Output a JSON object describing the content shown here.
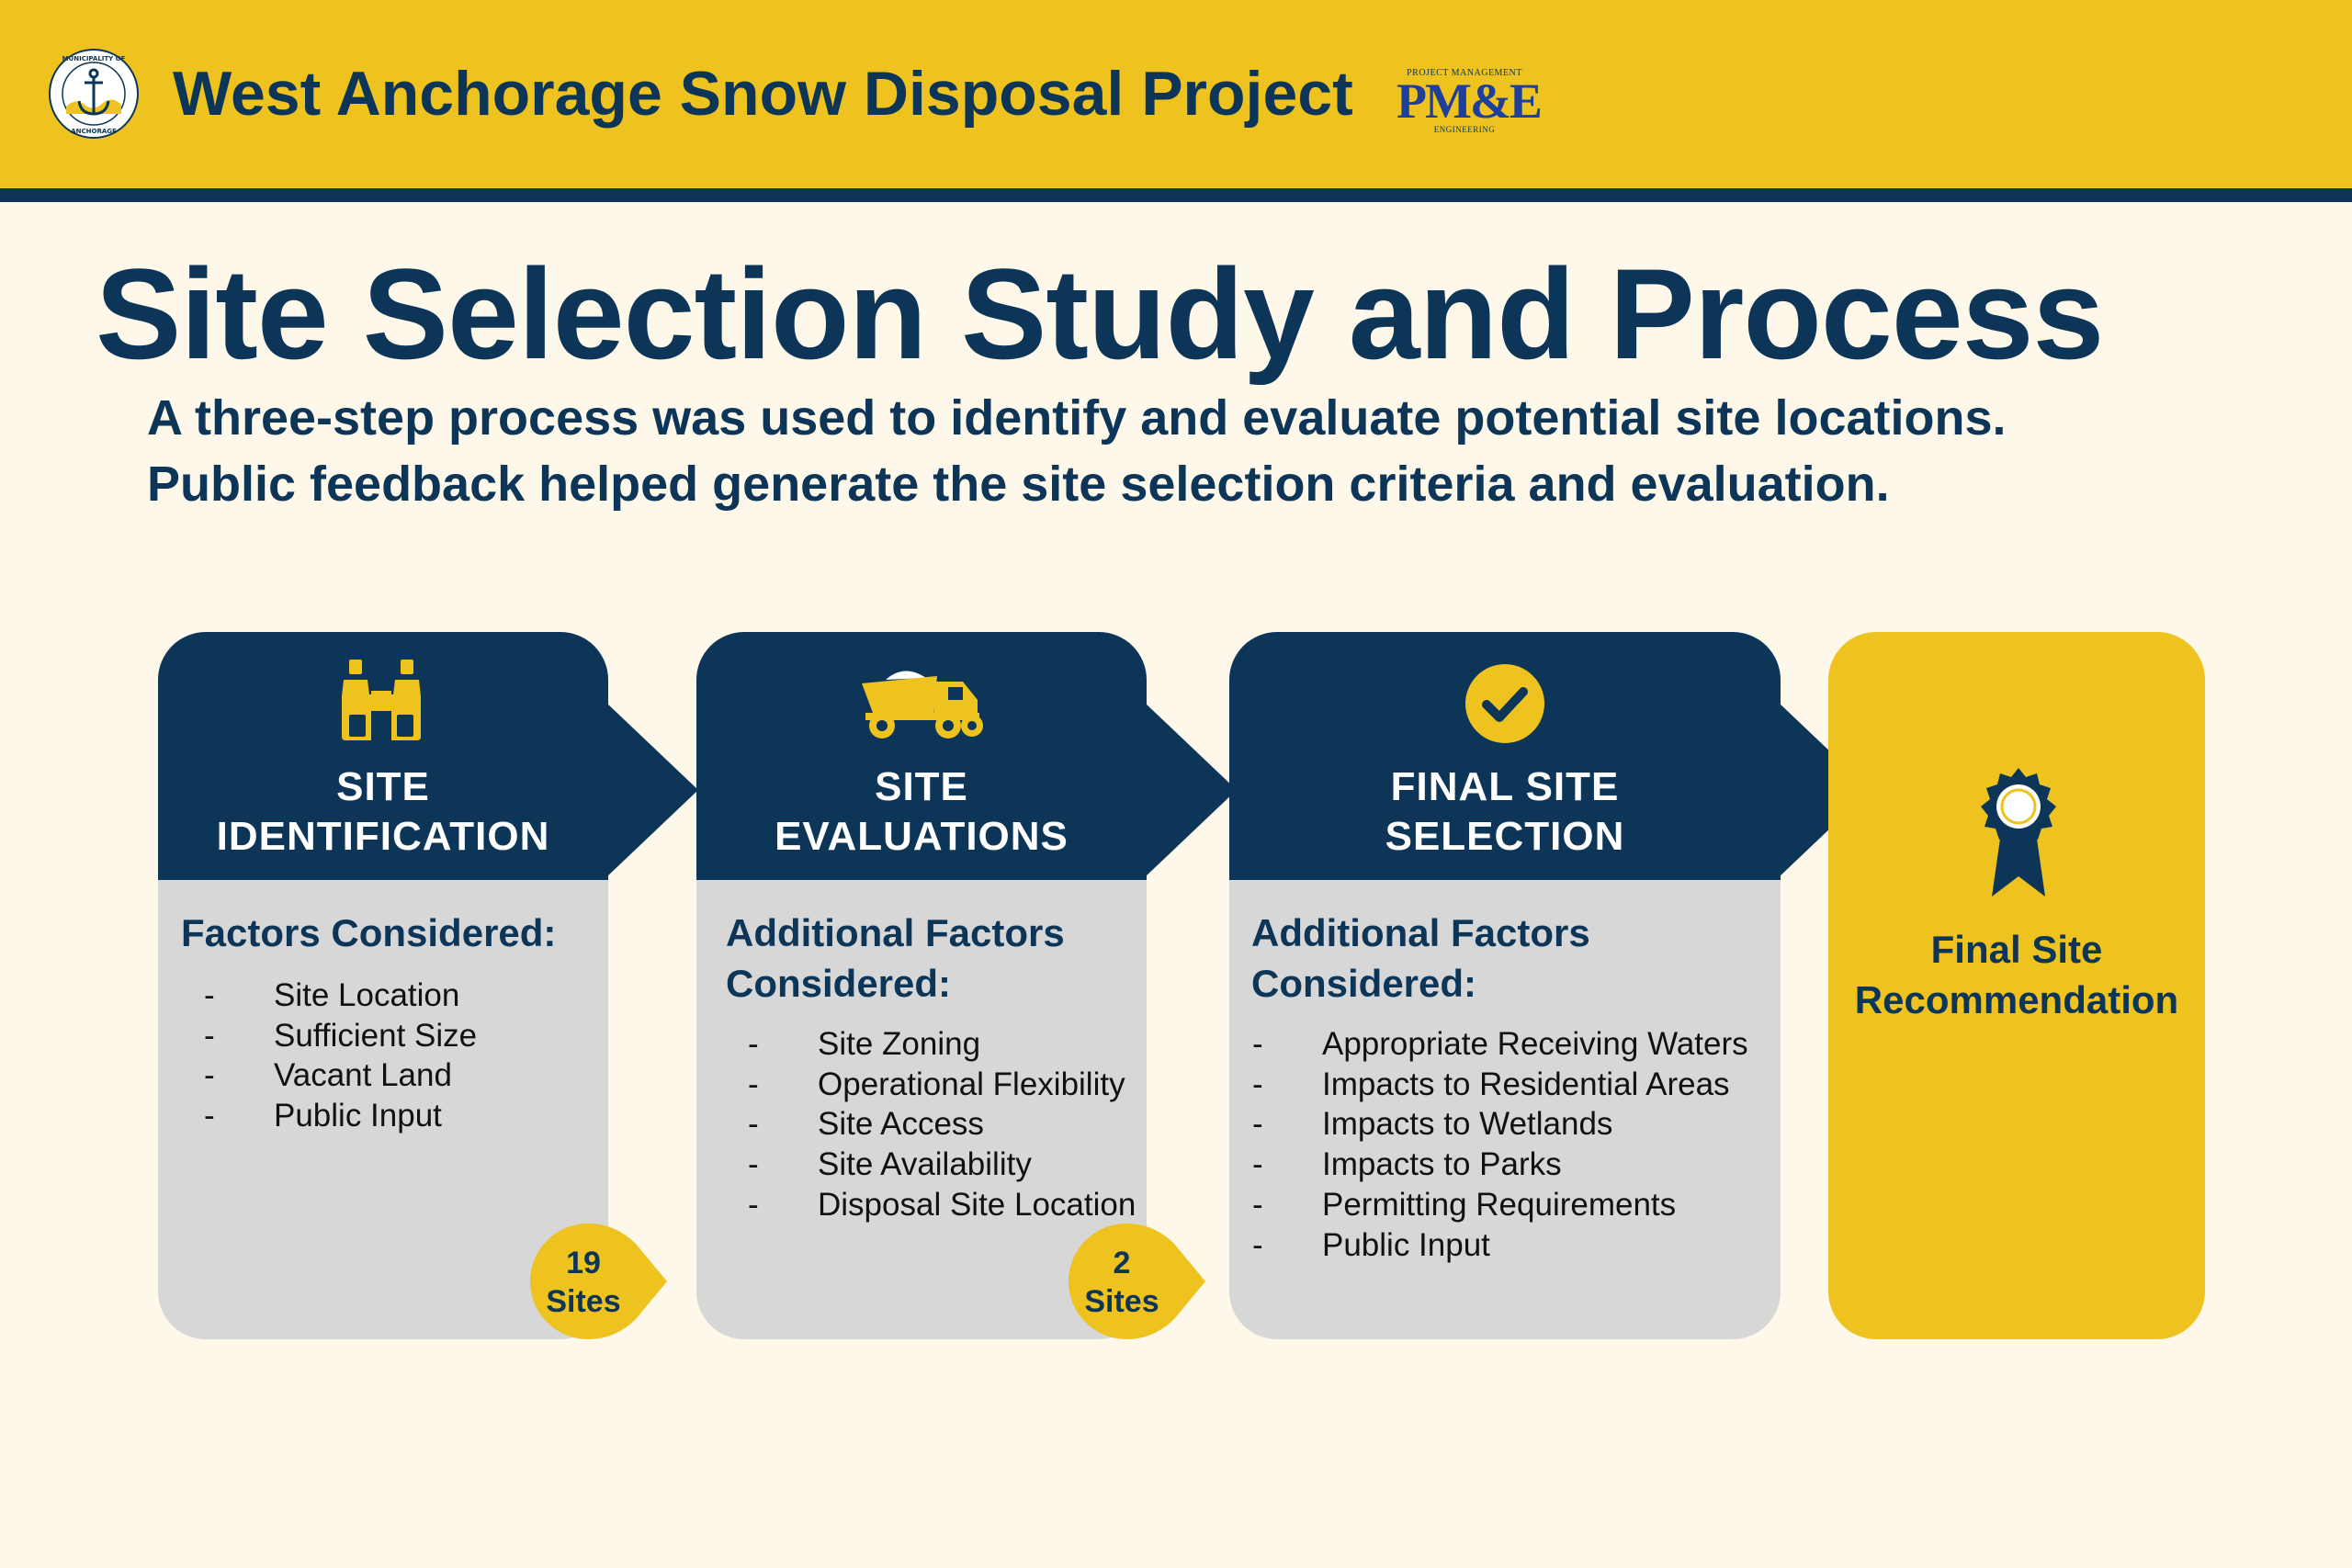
{
  "header": {
    "project_title": "West Anchorage Snow Disposal Project",
    "seal": {
      "top_text": "MUNICIPALITY OF",
      "bottom_text": "ANCHORAGE",
      "icon": "anchor-icon"
    },
    "pme_logo": {
      "top_text": "PROJECT MANAGEMENT",
      "main_text": "PM&E",
      "bottom_text": "ENGINEERING"
    }
  },
  "main": {
    "title": "Site Selection Study and Process",
    "subtitle_line1": "A three-step process was used to identify and evaluate potential site locations.",
    "subtitle_line2": "Public feedback helped generate the site selection criteria and evaluation."
  },
  "steps": [
    {
      "title_line1": "SITE",
      "title_line2": "IDENTIFICATION",
      "icon": "binoculars-icon",
      "factors_heading_line1": "Factors Considered:",
      "factors": [
        "Site Location",
        "Sufficient Size",
        "Vacant Land",
        "Public Input"
      ],
      "badge": {
        "count": "19",
        "unit": "Sites"
      }
    },
    {
      "title_line1": "SITE",
      "title_line2": "EVALUATIONS",
      "icon": "dump-truck-icon",
      "factors_heading_line1": "Additional Factors",
      "factors_heading_line2": "Considered:",
      "factors": [
        "Site Zoning",
        "Operational Flexibility",
        "Site Access",
        "Site Availability",
        "Disposal Site Location"
      ],
      "badge": {
        "count": "2",
        "unit": "Sites"
      }
    },
    {
      "title_line1": "FINAL SITE",
      "title_line2": "SELECTION",
      "icon": "checkmark-circle-icon",
      "factors_heading_line1": "Additional Factors",
      "factors_heading_line2": "Considered:",
      "factors": [
        "Appropriate Receiving Waters",
        "Impacts to Residential Areas",
        "Impacts to Wetlands",
        "Impacts to Parks",
        "Permitting Requirements",
        "Public Input"
      ]
    }
  ],
  "final": {
    "label_line1": "Final Site",
    "label_line2": "Recommendation",
    "icon": "award-ribbon-icon"
  },
  "colors": {
    "navy": "#0d3558",
    "gold": "#eec21f",
    "card_gray": "#d6d7d6",
    "background": "#fdf8ea"
  }
}
